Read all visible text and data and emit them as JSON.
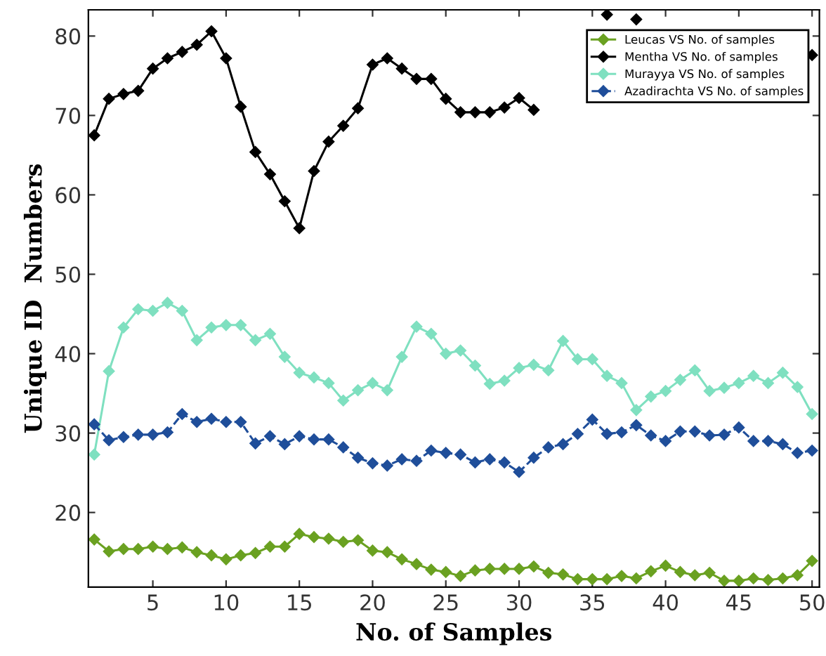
{
  "chart_data": {
    "type": "line",
    "xlabel": "No. of Samples",
    "ylabel": "Unique ID  Numbers",
    "x": [
      1,
      2,
      3,
      4,
      5,
      6,
      7,
      8,
      9,
      10,
      11,
      12,
      13,
      14,
      15,
      16,
      17,
      18,
      19,
      20,
      21,
      22,
      23,
      24,
      25,
      26,
      27,
      28,
      29,
      30,
      31,
      32,
      33,
      34,
      35,
      36,
      37,
      38,
      39,
      40,
      41,
      42,
      43,
      44,
      45,
      46,
      47,
      48,
      49,
      50
    ],
    "xlim": [
      0.6,
      50.5
    ],
    "xticks": [
      5,
      10,
      15,
      20,
      25,
      30,
      35,
      40,
      45,
      50
    ],
    "ylim": [
      10.6,
      83.3
    ],
    "yticks": [
      20,
      30,
      40,
      50,
      60,
      70,
      80
    ],
    "marker": "diamond",
    "grid": false,
    "legend": "top right",
    "series": [
      {
        "name": "Leucas VS No. of samples",
        "color": "#6aa121",
        "line_style": "solid",
        "values": [
          16.6,
          15.1,
          15.4,
          15.4,
          15.7,
          15.4,
          15.6,
          15.0,
          14.6,
          14.1,
          14.6,
          14.9,
          15.7,
          15.7,
          17.3,
          16.9,
          16.7,
          16.3,
          16.5,
          15.2,
          15.0,
          14.1,
          13.5,
          12.8,
          12.5,
          12.0,
          12.7,
          12.9,
          12.9,
          12.9,
          13.2,
          12.4,
          12.2,
          11.6,
          11.6,
          11.6,
          12.0,
          11.7,
          12.6,
          13.3,
          12.5,
          12.1,
          12.4,
          11.4,
          11.4,
          11.7,
          11.5,
          11.7,
          12.1,
          13.9
        ]
      },
      {
        "name": "Mentha VS No. of samples",
        "color": "#000000",
        "line_style": "solid",
        "values": [
          67.5,
          72.1,
          72.7,
          73.1,
          75.9,
          77.2,
          78.0,
          78.9,
          80.6,
          77.2,
          71.1,
          65.4,
          62.6,
          59.2,
          55.8,
          63.0,
          66.7,
          68.7,
          70.9,
          76.4,
          77.2,
          75.9,
          74.6,
          74.6,
          72.1,
          70.4,
          70.4,
          70.4,
          71.0,
          72.2,
          70.7,
          null,
          null,
          null,
          null,
          82.7,
          null,
          82.1,
          null,
          null,
          null,
          null,
          null,
          null,
          null,
          null,
          null,
          null,
          null,
          77.6
        ]
      },
      {
        "name": "Murayya VS No. of samples",
        "color": "#7fe0c0",
        "line_style": "solid",
        "values": [
          27.3,
          37.8,
          43.3,
          45.6,
          45.4,
          46.4,
          45.4,
          41.7,
          43.3,
          43.6,
          43.6,
          41.7,
          42.5,
          39.6,
          37.6,
          37.0,
          36.3,
          34.1,
          35.4,
          36.3,
          35.4,
          39.6,
          43.4,
          42.5,
          40.0,
          40.4,
          38.5,
          36.2,
          36.6,
          38.2,
          38.6,
          37.9,
          41.6,
          39.3,
          39.3,
          37.2,
          36.3,
          32.9,
          34.6,
          35.3,
          36.7,
          37.9,
          35.3,
          35.7,
          36.3,
          37.2,
          36.3,
          37.6,
          35.8,
          32.4
        ]
      },
      {
        "name": "Azadirachta VS No. of samples",
        "color": "#1f4e9a",
        "line_style": "dashed",
        "values": [
          31.1,
          29.1,
          29.5,
          29.8,
          29.8,
          30.1,
          32.4,
          31.4,
          31.8,
          31.4,
          31.4,
          28.7,
          29.6,
          28.6,
          29.6,
          29.2,
          29.2,
          28.2,
          26.9,
          26.2,
          25.9,
          26.7,
          26.5,
          27.8,
          27.5,
          27.3,
          26.3,
          26.7,
          26.3,
          25.1,
          26.9,
          28.2,
          28.6,
          29.9,
          31.7,
          29.9,
          30.1,
          31.0,
          29.7,
          29.0,
          30.2,
          30.2,
          29.7,
          29.8,
          30.7,
          29.0,
          29.0,
          28.6,
          27.5,
          27.8
        ]
      }
    ]
  }
}
